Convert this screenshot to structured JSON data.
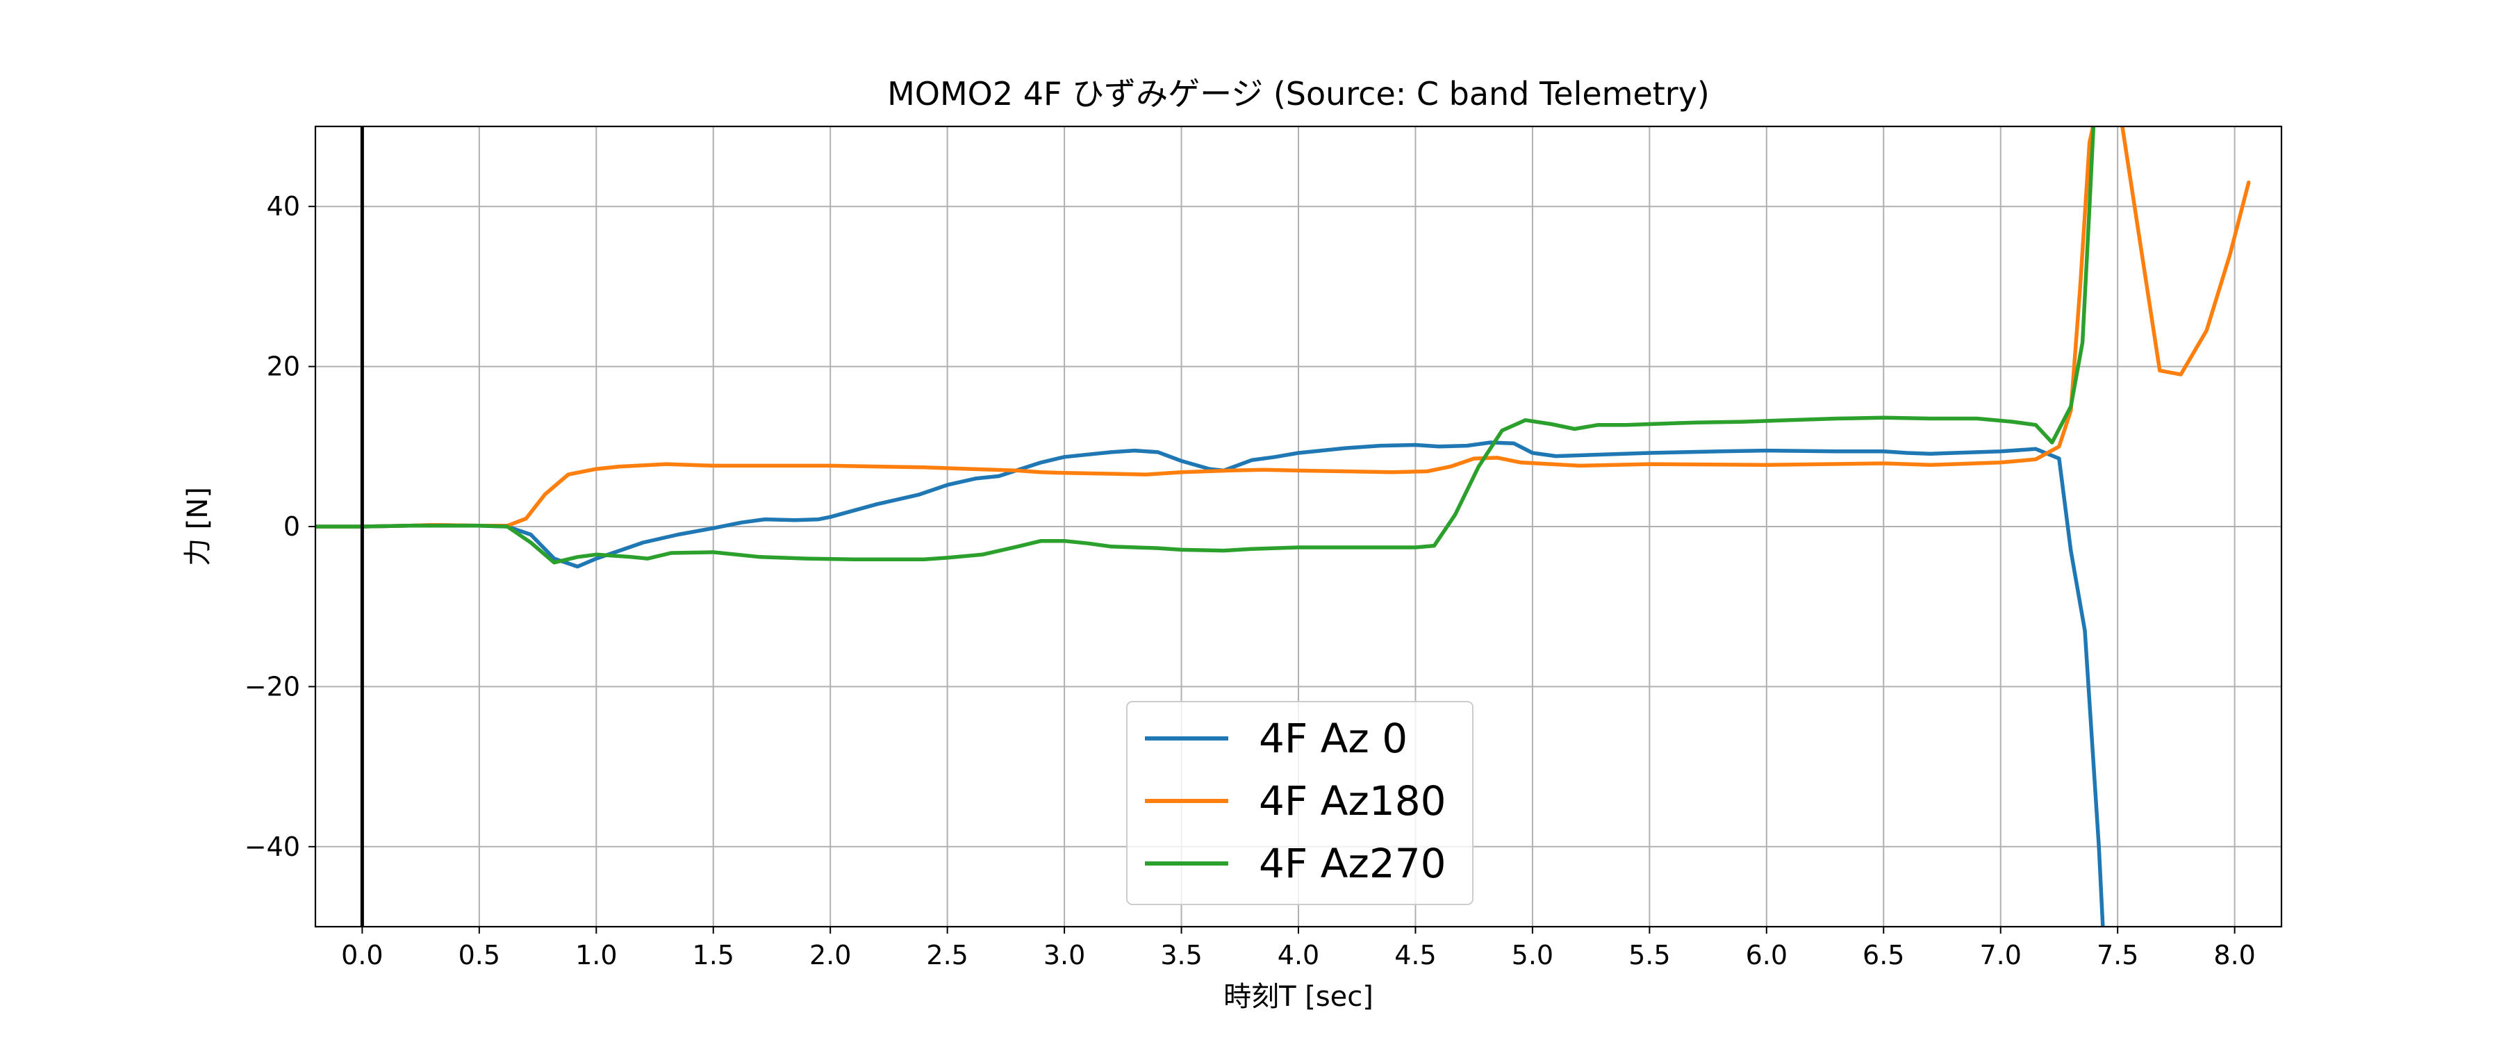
{
  "chart_data": {
    "type": "line",
    "title": "MOMO2 4F ひずみゲージ (Source: C band Telemetry)",
    "xlabel": "時刻T [sec]",
    "ylabel": "力 [N]",
    "xlim": [
      -0.2,
      8.2
    ],
    "ylim": [
      -50,
      50
    ],
    "xticks": [
      0.0,
      0.5,
      1.0,
      1.5,
      2.0,
      2.5,
      3.0,
      3.5,
      4.0,
      4.5,
      5.0,
      5.5,
      6.0,
      6.5,
      7.0,
      7.5,
      8.0
    ],
    "xtick_labels": [
      "0.0",
      "0.5",
      "1.0",
      "1.5",
      "2.0",
      "2.5",
      "3.0",
      "3.5",
      "4.0",
      "4.5",
      "5.0",
      "5.5",
      "6.0",
      "6.5",
      "7.0",
      "7.5",
      "8.0"
    ],
    "yticks": [
      -40,
      -20,
      0,
      20,
      40
    ],
    "ytick_labels": [
      "−40",
      "−20",
      "0",
      "20",
      "40"
    ],
    "grid": true,
    "vline_x": 0.0,
    "legend_position": "bottom-center",
    "series": [
      {
        "name": "4F Az 0",
        "color": "#1f77b4",
        "points": [
          [
            -0.2,
            0
          ],
          [
            0,
            0
          ],
          [
            0.2,
            0.1
          ],
          [
            0.3,
            0.2
          ],
          [
            0.5,
            0.1
          ],
          [
            0.62,
            0
          ],
          [
            0.72,
            -1
          ],
          [
            0.82,
            -4
          ],
          [
            0.92,
            -5
          ],
          [
            1.0,
            -4
          ],
          [
            1.1,
            -3
          ],
          [
            1.2,
            -2
          ],
          [
            1.35,
            -1
          ],
          [
            1.5,
            -0.2
          ],
          [
            1.62,
            0.5
          ],
          [
            1.72,
            0.9
          ],
          [
            1.85,
            0.8
          ],
          [
            1.95,
            0.9
          ],
          [
            2.0,
            1.2
          ],
          [
            2.2,
            2.8
          ],
          [
            2.38,
            4
          ],
          [
            2.5,
            5.2
          ],
          [
            2.62,
            6
          ],
          [
            2.72,
            6.3
          ],
          [
            2.9,
            8
          ],
          [
            3.0,
            8.7
          ],
          [
            3.1,
            9
          ],
          [
            3.2,
            9.3
          ],
          [
            3.3,
            9.5
          ],
          [
            3.4,
            9.3
          ],
          [
            3.5,
            8.2
          ],
          [
            3.62,
            7.2
          ],
          [
            3.68,
            7
          ],
          [
            3.8,
            8.3
          ],
          [
            3.9,
            8.7
          ],
          [
            4.0,
            9.2
          ],
          [
            4.1,
            9.5
          ],
          [
            4.2,
            9.8
          ],
          [
            4.35,
            10.1
          ],
          [
            4.5,
            10.2
          ],
          [
            4.6,
            10
          ],
          [
            4.72,
            10.1
          ],
          [
            4.82,
            10.5
          ],
          [
            4.92,
            10.4
          ],
          [
            5.0,
            9.2
          ],
          [
            5.1,
            8.8
          ],
          [
            5.5,
            9.2
          ],
          [
            5.8,
            9.4
          ],
          [
            6.0,
            9.5
          ],
          [
            6.3,
            9.4
          ],
          [
            6.5,
            9.4
          ],
          [
            6.6,
            9.2
          ],
          [
            6.7,
            9.1
          ],
          [
            7.0,
            9.4
          ],
          [
            7.15,
            9.7
          ],
          [
            7.25,
            8.5
          ],
          [
            7.3,
            -3
          ],
          [
            7.36,
            -13
          ],
          [
            7.42,
            -40
          ],
          [
            7.44,
            -52
          ]
        ]
      },
      {
        "name": "4F Az180",
        "color": "#ff7f0e",
        "points": [
          [
            -0.2,
            0
          ],
          [
            0,
            0
          ],
          [
            0.2,
            0.1
          ],
          [
            0.3,
            0.2
          ],
          [
            0.5,
            0.1
          ],
          [
            0.62,
            0.1
          ],
          [
            0.7,
            1
          ],
          [
            0.78,
            4
          ],
          [
            0.88,
            6.5
          ],
          [
            1.0,
            7.2
          ],
          [
            1.1,
            7.5
          ],
          [
            1.3,
            7.8
          ],
          [
            1.5,
            7.6
          ],
          [
            1.7,
            7.6
          ],
          [
            1.9,
            7.6
          ],
          [
            2.0,
            7.6
          ],
          [
            2.2,
            7.5
          ],
          [
            2.4,
            7.4
          ],
          [
            2.6,
            7.2
          ],
          [
            2.8,
            7
          ],
          [
            2.9,
            6.8
          ],
          [
            3.0,
            6.7
          ],
          [
            3.2,
            6.6
          ],
          [
            3.35,
            6.5
          ],
          [
            3.5,
            6.8
          ],
          [
            3.7,
            7
          ],
          [
            3.85,
            7.1
          ],
          [
            4.0,
            7
          ],
          [
            4.2,
            6.9
          ],
          [
            4.4,
            6.8
          ],
          [
            4.55,
            6.9
          ],
          [
            4.65,
            7.5
          ],
          [
            4.75,
            8.5
          ],
          [
            4.85,
            8.6
          ],
          [
            4.95,
            8
          ],
          [
            5.2,
            7.6
          ],
          [
            5.5,
            7.8
          ],
          [
            6.0,
            7.7
          ],
          [
            6.5,
            7.9
          ],
          [
            6.7,
            7.7
          ],
          [
            7.0,
            8
          ],
          [
            7.15,
            8.4
          ],
          [
            7.25,
            10
          ],
          [
            7.3,
            14.5
          ],
          [
            7.34,
            30
          ],
          [
            7.38,
            48
          ],
          [
            7.41,
            52
          ],
          [
            7.5,
            52
          ],
          [
            7.52,
            50
          ],
          [
            7.68,
            19.5
          ],
          [
            7.77,
            19
          ],
          [
            7.88,
            24.5
          ],
          [
            7.98,
            34
          ],
          [
            8.06,
            43
          ]
        ]
      },
      {
        "name": "4F Az270",
        "color": "#2ca02c",
        "points": [
          [
            -0.2,
            0
          ],
          [
            0,
            0
          ],
          [
            0.2,
            0.1
          ],
          [
            0.3,
            0.1
          ],
          [
            0.5,
            0.1
          ],
          [
            0.62,
            0
          ],
          [
            0.72,
            -2
          ],
          [
            0.82,
            -4.5
          ],
          [
            0.92,
            -3.8
          ],
          [
            1.0,
            -3.5
          ],
          [
            1.15,
            -3.8
          ],
          [
            1.22,
            -4
          ],
          [
            1.32,
            -3.3
          ],
          [
            1.5,
            -3.2
          ],
          [
            1.7,
            -3.8
          ],
          [
            1.9,
            -4
          ],
          [
            2.1,
            -4.1
          ],
          [
            2.2,
            -4.1
          ],
          [
            2.4,
            -4.1
          ],
          [
            2.5,
            -3.9
          ],
          [
            2.65,
            -3.5
          ],
          [
            2.8,
            -2.5
          ],
          [
            2.9,
            -1.8
          ],
          [
            3.0,
            -1.8
          ],
          [
            3.1,
            -2.1
          ],
          [
            3.2,
            -2.5
          ],
          [
            3.4,
            -2.7
          ],
          [
            3.5,
            -2.9
          ],
          [
            3.68,
            -3
          ],
          [
            3.8,
            -2.8
          ],
          [
            4.0,
            -2.6
          ],
          [
            4.2,
            -2.6
          ],
          [
            4.4,
            -2.6
          ],
          [
            4.5,
            -2.6
          ],
          [
            4.58,
            -2.4
          ],
          [
            4.67,
            1.5
          ],
          [
            4.77,
            7.5
          ],
          [
            4.87,
            12
          ],
          [
            4.97,
            13.3
          ],
          [
            5.08,
            12.8
          ],
          [
            5.18,
            12.2
          ],
          [
            5.28,
            12.7
          ],
          [
            5.4,
            12.7
          ],
          [
            5.5,
            12.8
          ],
          [
            5.7,
            13
          ],
          [
            5.9,
            13.1
          ],
          [
            6.1,
            13.3
          ],
          [
            6.3,
            13.5
          ],
          [
            6.5,
            13.6
          ],
          [
            6.7,
            13.5
          ],
          [
            6.9,
            13.5
          ],
          [
            7.05,
            13.1
          ],
          [
            7.15,
            12.7
          ],
          [
            7.22,
            10.5
          ],
          [
            7.3,
            15
          ],
          [
            7.35,
            23
          ],
          [
            7.38,
            40
          ],
          [
            7.4,
            52
          ]
        ]
      }
    ]
  }
}
